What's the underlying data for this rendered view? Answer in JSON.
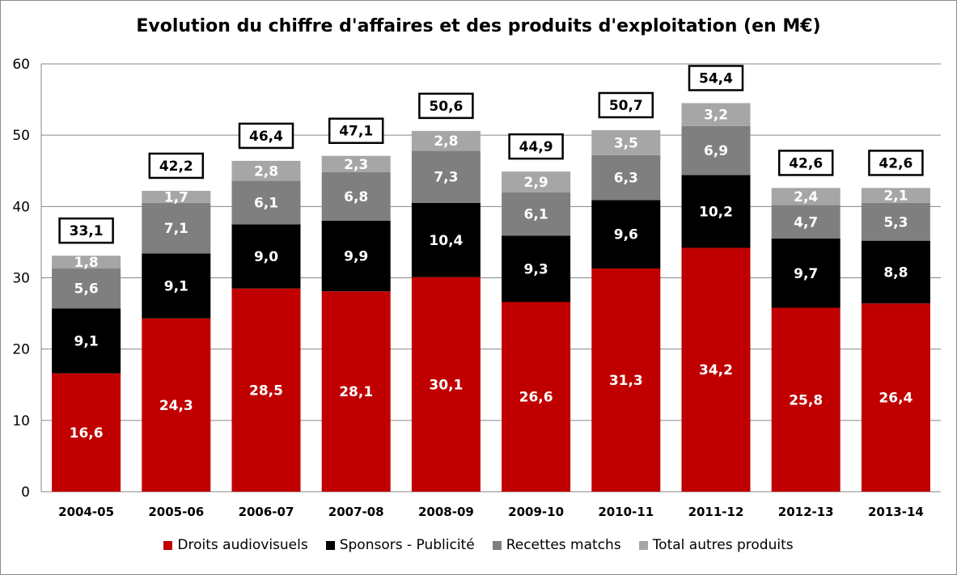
{
  "chart_data": {
    "type": "bar",
    "stacked": true,
    "title": "Evolution du chiffre d'affaires et des produits d'exploitation (en M€)",
    "categories": [
      "2004-05",
      "2005-06",
      "2006-07",
      "2007-08",
      "2008-09",
      "2009-10",
      "2010-11",
      "2011-12",
      "2012-13",
      "2013-14"
    ],
    "series": [
      {
        "name": "Droits audiovisuels",
        "color": "#c00000",
        "label_color": "#ffffff",
        "values": [
          16.6,
          24.3,
          28.5,
          28.1,
          30.1,
          26.6,
          31.3,
          34.2,
          25.8,
          26.4
        ],
        "labels": [
          "16,6",
          "24,3",
          "28,5",
          "28,1",
          "30,1",
          "26,6",
          "31,3",
          "34,2",
          "25,8",
          "26,4"
        ]
      },
      {
        "name": "Sponsors - Publicité",
        "color": "#000000",
        "label_color": "#ffffff",
        "values": [
          9.1,
          9.1,
          9.0,
          9.9,
          10.4,
          9.3,
          9.6,
          10.2,
          9.7,
          8.8
        ],
        "labels": [
          "9,1",
          "9,1",
          "9,0",
          "9,9",
          "10,4",
          "9,3",
          "9,6",
          "10,2",
          "9,7",
          "8,8"
        ]
      },
      {
        "name": "Recettes matchs",
        "color": "#7f7f7f",
        "label_color": "#ffffff",
        "values": [
          5.6,
          7.1,
          6.1,
          6.8,
          7.3,
          6.1,
          6.3,
          6.9,
          4.7,
          5.3
        ],
        "labels": [
          "5,6",
          "7,1",
          "6,1",
          "6,8",
          "7,3",
          "6,1",
          "6,3",
          "6,9",
          "4,7",
          "5,3"
        ]
      },
      {
        "name": "Total autres produits",
        "color": "#a6a6a6",
        "label_color": "#ffffff",
        "values": [
          1.8,
          1.7,
          2.8,
          2.3,
          2.8,
          2.9,
          3.5,
          3.2,
          2.4,
          2.1
        ],
        "labels": [
          "1,8",
          "1,7",
          "2,8",
          "2,3",
          "2,8",
          "2,9",
          "3,5",
          "3,2",
          "2,4",
          "2,1"
        ]
      }
    ],
    "totals": [
      33.1,
      42.2,
      46.4,
      47.1,
      50.6,
      44.9,
      50.7,
      54.4,
      42.6,
      42.6
    ],
    "total_labels": [
      "33,1",
      "42,2",
      "46,4",
      "47,1",
      "50,6",
      "44,9",
      "50,7",
      "54,4",
      "42,6",
      "42,6"
    ],
    "ylim": [
      0,
      60
    ],
    "yticks": [
      0,
      10,
      20,
      30,
      40,
      50,
      60
    ],
    "ytick_labels": [
      "0",
      "10",
      "20",
      "30",
      "40",
      "50",
      "60"
    ],
    "grid": true,
    "gridline_color": "#868686",
    "legend_position": "bottom"
  }
}
